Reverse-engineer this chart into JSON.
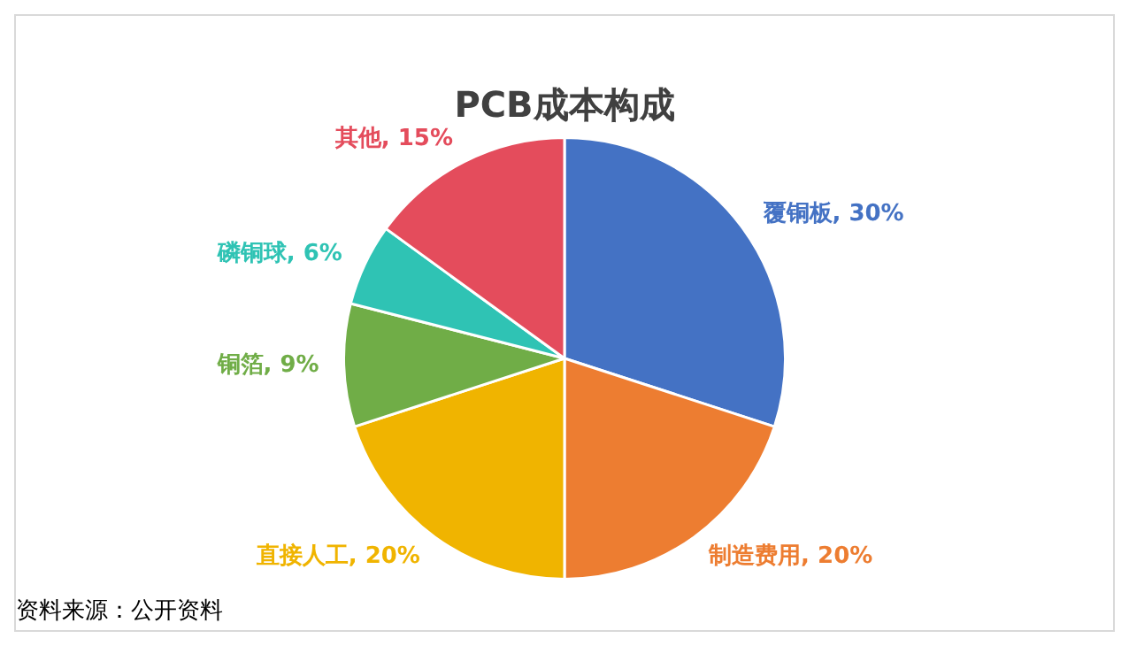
{
  "chart_data": {
    "type": "pie",
    "title": "PCB成本构成",
    "categories": [
      "覆铜板",
      "制造费用",
      "直接人工",
      "铜箔",
      "磷铜球",
      "其他"
    ],
    "values": [
      30,
      20,
      20,
      9,
      6,
      15
    ],
    "value_labels": [
      "30%",
      "20%",
      "20%",
      "9%",
      "6%",
      "15%"
    ],
    "colors": [
      "#4472c4",
      "#ed7d31",
      "#f0b400",
      "#70ad47",
      "#2fc3b4",
      "#e44c5c"
    ],
    "legend": false,
    "annotations": [
      "资料来源：公开资料"
    ]
  }
}
